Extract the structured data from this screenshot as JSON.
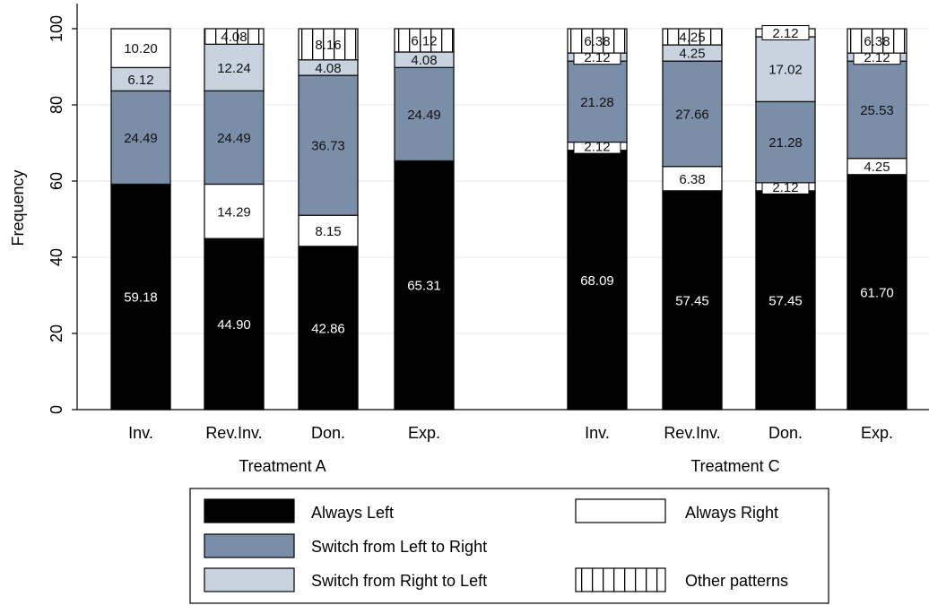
{
  "chart_data": {
    "type": "bar",
    "stacked": true,
    "ylabel": "Frequency",
    "ylim": [
      0,
      100
    ],
    "yticks": [
      "0",
      "20",
      "40",
      "60",
      "80",
      "100"
    ],
    "grid": true,
    "groups": [
      {
        "label": "Treatment A",
        "categories": [
          "Inv.",
          "Rev.Inv.",
          "Don.",
          "Exp."
        ],
        "series": [
          {
            "name": "Always Left",
            "values": [
              59.18,
              44.9,
              42.86,
              65.31
            ],
            "labels": [
              "59.18",
              "44.90",
              "42.86",
              "65.31"
            ]
          },
          {
            "name": "Always Right",
            "values": [
              0,
              14.29,
              8.15,
              0
            ],
            "labels": [
              "",
              "14.29",
              "8.15",
              ""
            ]
          },
          {
            "name": "Switch from Left to Right",
            "values": [
              24.49,
              24.49,
              36.73,
              24.49
            ],
            "labels": [
              "24.49",
              "24.49",
              "36.73",
              "24.49"
            ]
          },
          {
            "name": "Switch from Right to Left",
            "values": [
              6.12,
              12.24,
              4.08,
              4.08
            ],
            "labels": [
              "6.12",
              "12.24",
              "4.08",
              "4.08"
            ]
          },
          {
            "name": "Always Right",
            "values": [
              10.2,
              0,
              0,
              0
            ],
            "labels": [
              "10.20",
              "",
              "",
              ""
            ]
          },
          {
            "name": "Other patterns",
            "values": [
              0,
              4.08,
              8.16,
              6.12
            ],
            "labels": [
              "",
              "4.08",
              "8.16",
              "6.12"
            ]
          }
        ]
      },
      {
        "label": "Treatment C",
        "categories": [
          "Inv.",
          "Rev.Inv.",
          "Don.",
          "Exp."
        ],
        "series": [
          {
            "name": "Always Left",
            "values": [
              68.09,
              57.45,
              57.45,
              61.7
            ],
            "labels": [
              "68.09",
              "57.45",
              "57.45",
              "61.70"
            ]
          },
          {
            "name": "Always Right",
            "values": [
              2.12,
              6.38,
              2.12,
              4.25
            ],
            "labels": [
              "2.12",
              "6.38",
              "2.12",
              "4.25"
            ]
          },
          {
            "name": "Switch from Left to Right",
            "values": [
              21.28,
              27.66,
              21.28,
              25.53
            ],
            "labels": [
              "21.28",
              "27.66",
              "21.28",
              "25.53"
            ]
          },
          {
            "name": "Switch from Right to Left",
            "values": [
              2.12,
              4.25,
              17.02,
              2.12
            ],
            "labels": [
              "2.12",
              "4.25",
              "17.02",
              "2.12"
            ]
          },
          {
            "name": "Other patterns",
            "values": [
              6.38,
              4.25,
              2.12,
              6.38
            ],
            "labels": [
              "6.38",
              "4.25",
              "2.12",
              "6.38"
            ]
          }
        ]
      }
    ],
    "legend": {
      "placement": "bottom",
      "entries": [
        {
          "name": "Always Left",
          "swatch": "black"
        },
        {
          "name": "Always Right",
          "swatch": "white"
        },
        {
          "name": "Switch from Left to Right",
          "swatch": "mid"
        },
        {
          "name": "Other patterns",
          "swatch": "hatched"
        },
        {
          "name": "Switch from Right to Left",
          "swatch": "light"
        }
      ]
    },
    "colors": {
      "Always Left": "#000000",
      "Always Right": "#ffffff",
      "Switch from Left to Right": "#7b8ea8",
      "Switch from Right to Left": "#c8d3df",
      "Other patterns": "#ffffff",
      "grid": "#e7eef3"
    }
  }
}
